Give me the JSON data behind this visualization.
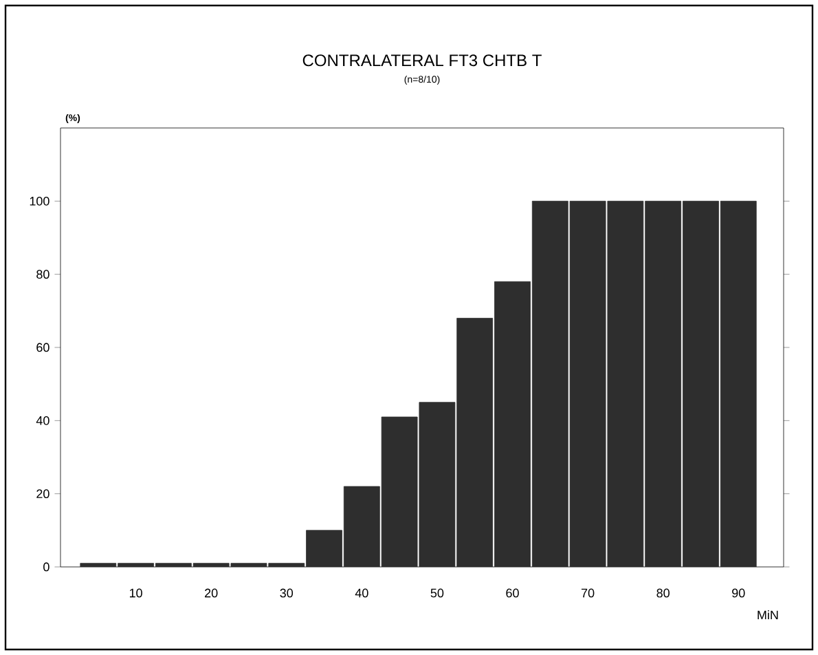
{
  "chart_data": {
    "type": "bar",
    "title": "CONTRALATERAL FT3 CHTB T",
    "subtitle": "(n=8/10)",
    "xlabel": "MiN",
    "ylabel": "(%)",
    "x": [
      5,
      10,
      15,
      20,
      25,
      30,
      35,
      40,
      45,
      50,
      55,
      60,
      65,
      70,
      75,
      80,
      85,
      90
    ],
    "values": [
      1,
      1,
      1,
      1,
      1,
      1,
      10,
      22,
      41,
      45,
      68,
      78,
      100,
      100,
      100,
      100,
      100,
      100
    ],
    "color": "#2e2e2e",
    "xlim": [
      0,
      96
    ],
    "xticks": [
      10,
      20,
      30,
      40,
      50,
      60,
      70,
      80,
      90
    ],
    "ylim": [
      0,
      120
    ],
    "yticks": [
      0,
      20,
      40,
      60,
      80,
      100
    ]
  }
}
